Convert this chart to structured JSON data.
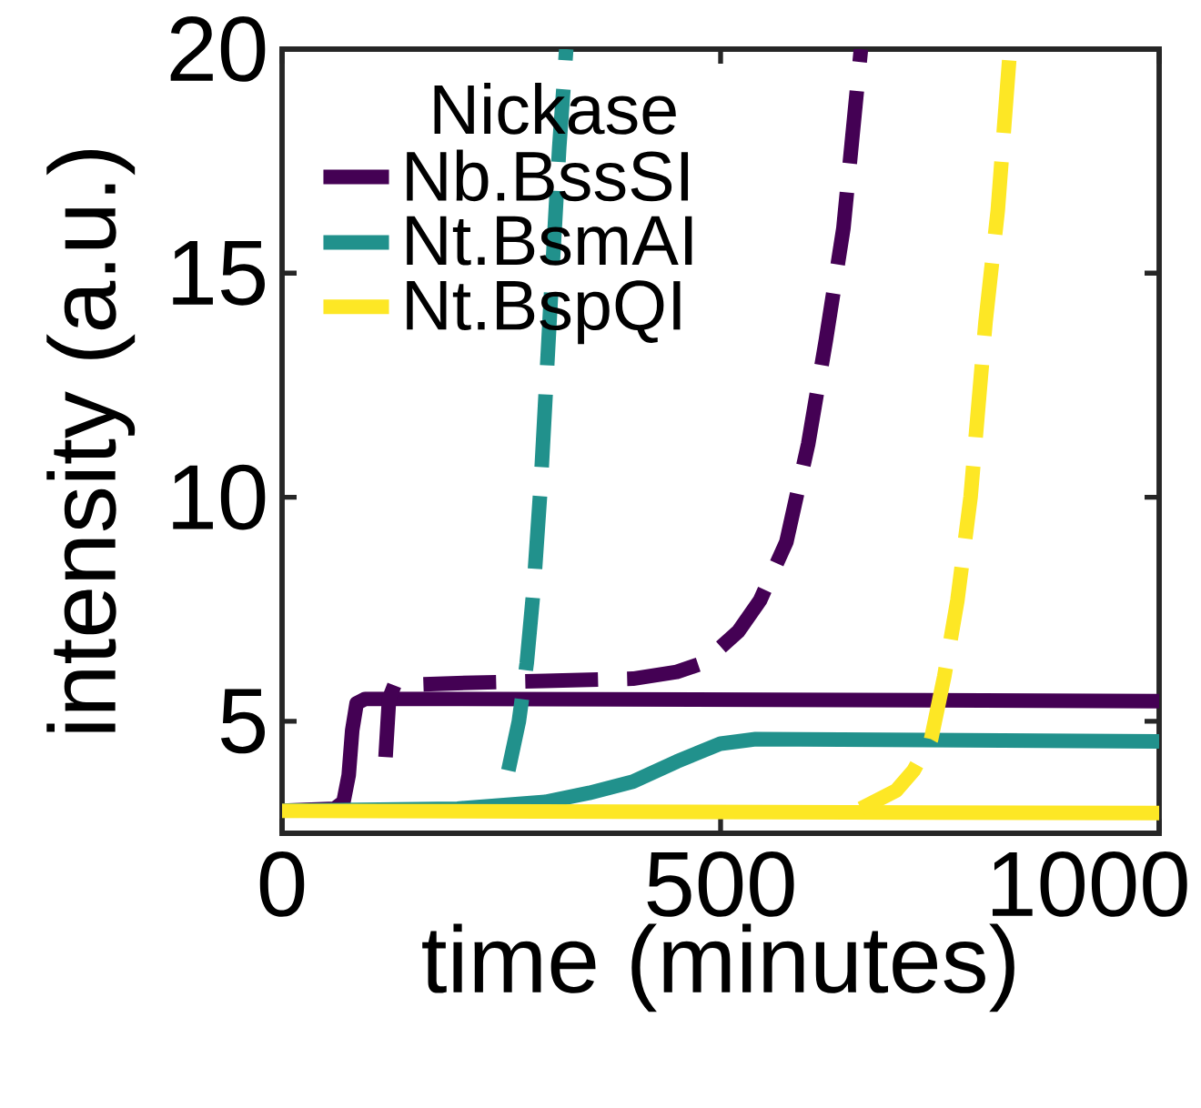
{
  "chart_data": {
    "type": "line",
    "xlabel": "time (minutes)",
    "ylabel": "intensity (a.u.)",
    "legend_title": "Nickase",
    "xlim": [
      0,
      1000
    ],
    "ylim": [
      2.5,
      20
    ],
    "xticks": [
      0,
      500,
      1000
    ],
    "yticks": [
      5,
      10,
      15,
      20
    ],
    "legend": "top left",
    "series": [
      {
        "name": "Nb.BssSI",
        "color": "#440154",
        "line_style": "solid",
        "x": [
          0,
          60,
          70,
          76,
          80,
          85,
          95,
          200,
          1000
        ],
        "values": [
          3.0,
          3.05,
          3.2,
          3.8,
          4.8,
          5.4,
          5.5,
          5.5,
          5.45
        ]
      },
      {
        "name": "Nt.BsmAI",
        "color": "#21918c",
        "line_style": "solid",
        "x": [
          0,
          200,
          300,
          350,
          400,
          450,
          500,
          540,
          1000
        ],
        "values": [
          3.0,
          3.05,
          3.2,
          3.4,
          3.65,
          4.1,
          4.5,
          4.6,
          4.55
        ]
      },
      {
        "name": "Nt.BspQI",
        "color": "#fde725",
        "line_style": "solid",
        "x": [
          0,
          1000
        ],
        "values": [
          3.0,
          2.95
        ]
      },
      {
        "color": "#440154",
        "line_style": "dashed",
        "x": [
          118,
          122,
          128,
          200,
          300,
          400,
          450,
          480,
          520,
          545,
          575,
          600,
          620,
          640,
          655,
          660
        ],
        "values": [
          4.2,
          5.5,
          5.8,
          5.85,
          5.9,
          5.95,
          6.1,
          6.3,
          7.0,
          7.7,
          9.0,
          11.2,
          13.5,
          16.0,
          19.0,
          20.0
        ]
      },
      {
        "color": "#21918c",
        "line_style": "dashed",
        "x": [
          258,
          270,
          279,
          287,
          295,
          306,
          316,
          324
        ],
        "values": [
          3.9,
          5.0,
          6.3,
          8.0,
          10.3,
          14.3,
          17.8,
          20.0
        ]
      },
      {
        "color": "#fde725",
        "line_style": "dashed",
        "x": [
          660,
          680,
          700,
          720,
          740,
          755,
          770,
          785,
          802,
          816,
          830
        ],
        "values": [
          3.05,
          3.25,
          3.45,
          3.9,
          4.6,
          6.0,
          7.7,
          10.0,
          13.9,
          16.4,
          20.0
        ]
      }
    ]
  }
}
